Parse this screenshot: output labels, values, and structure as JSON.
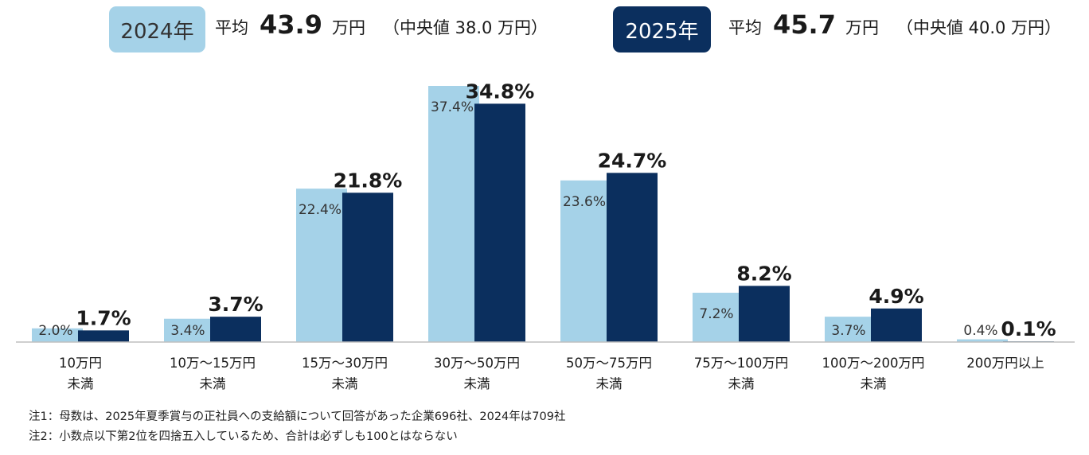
{
  "header": {
    "y2024": {
      "badge": "2024年",
      "avg_label": "平均",
      "avg_value": "43.9",
      "unit": "万円",
      "median": "（中央値 38.0 万円）"
    },
    "y2025": {
      "badge": "2025年",
      "avg_label": "平均",
      "avg_value": "45.7",
      "unit": "万円",
      "median": "（中央値 40.0 万円）"
    }
  },
  "colors": {
    "y2024": "#a5d2e8",
    "y2025": "#0b2f5e",
    "axis": "#bfbfbf"
  },
  "chart_data": {
    "type": "bar",
    "categories": [
      [
        "10万円",
        "未満"
      ],
      [
        "10万～15万円",
        "未満"
      ],
      [
        "15万～30万円",
        "未満"
      ],
      [
        "30万～50万円",
        "未満"
      ],
      [
        "50万～75万円",
        "未満"
      ],
      [
        "75万～100万円",
        "未満"
      ],
      [
        "100万～200万円",
        "未満"
      ],
      [
        "200万円以上"
      ]
    ],
    "series": [
      {
        "name": "2024年",
        "values": [
          2.0,
          3.4,
          22.4,
          37.4,
          23.6,
          7.2,
          3.7,
          0.4
        ],
        "labels": [
          "2.0%",
          "3.4%",
          "22.4%",
          "37.4%",
          "23.6%",
          "7.2%",
          "3.7%",
          "0.4%"
        ]
      },
      {
        "name": "2025年",
        "values": [
          1.7,
          3.7,
          21.8,
          34.8,
          24.7,
          8.2,
          4.9,
          0.1
        ],
        "labels": [
          "1.7%",
          "3.7%",
          "21.8%",
          "34.8%",
          "24.7%",
          "8.2%",
          "4.9%",
          "0.1%"
        ]
      }
    ],
    "unit": "%",
    "ylim": [
      0,
      37.4
    ],
    "grid": false,
    "legend": "top"
  },
  "notes": [
    "注1：母数は、2025年夏季賞与の正社員への支給額について回答があった企業696社、2024年は709社",
    "注2：小数点以下第2位を四捨五入しているため、合計は必ずしも100とはならない"
  ]
}
